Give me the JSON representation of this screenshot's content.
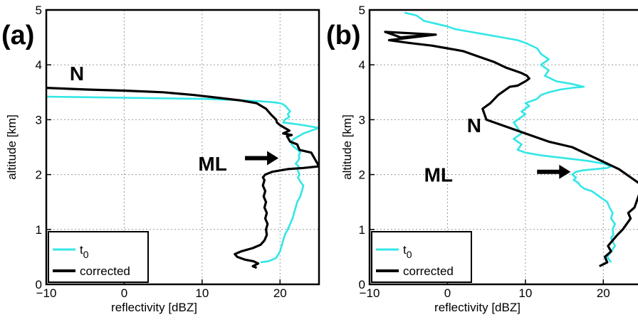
{
  "colors": {
    "t0": "#33e6e6",
    "corrected": "#000000"
  },
  "chart_data": [
    {
      "type": "line",
      "panel_label": "(a)",
      "xlabel": "reflectivity [dBZ]",
      "ylabel": "altitude [km]",
      "xlim": [
        -10,
        25
      ],
      "ylim": [
        0,
        5
      ],
      "xticks": [
        -10,
        0,
        10,
        20
      ],
      "yticks": [
        0,
        1,
        2,
        3,
        4,
        5
      ],
      "grid": true,
      "legend_position": "bottom-left",
      "legend": [
        {
          "series": "t0",
          "label_main": "t",
          "label_sub": "0"
        },
        {
          "series": "corrected",
          "label_main": "corrected",
          "label_sub": ""
        }
      ],
      "annotations": [
        {
          "text": "N",
          "x": -7.0,
          "y": 3.85,
          "arrow": false
        },
        {
          "text": "ML",
          "x": 9.5,
          "y": 2.2,
          "arrow": true,
          "arrow_from": [
            15.5,
            2.3
          ],
          "arrow_to": [
            19.8,
            2.3
          ]
        }
      ],
      "series": [
        {
          "key": "t0",
          "x": [
            17.5,
            18.5,
            19.5,
            20.0,
            20.3,
            20.6,
            21.0,
            21.3,
            21.6,
            21.8,
            22.0,
            22.2,
            22.4,
            22.6,
            22.8,
            23.0,
            22.7,
            22.5,
            22.3,
            22.5,
            22.2,
            22.4,
            22.0,
            22.3,
            22.5,
            22.4,
            22.6,
            22.3,
            21.8,
            21.5,
            21.4,
            21.8,
            22.4,
            23.0,
            24.0,
            25.0,
            23.0,
            21.5,
            20.4,
            20.6,
            21.2,
            21.0,
            21.3,
            21.0,
            20.7,
            20.4,
            20.0,
            19.0,
            17.0,
            14.0,
            10.0,
            5.0,
            0.0,
            -5.0,
            -10.0
          ],
          "y": [
            0.4,
            0.42,
            0.48,
            0.6,
            0.75,
            0.9,
            1.0,
            1.1,
            1.2,
            1.3,
            1.4,
            1.5,
            1.55,
            1.6,
            1.7,
            1.8,
            1.85,
            1.9,
            1.95,
            2.0,
            2.1,
            2.15,
            2.2,
            2.25,
            2.3,
            2.35,
            2.4,
            2.45,
            2.5,
            2.55,
            2.6,
            2.65,
            2.7,
            2.75,
            2.8,
            2.85,
            2.9,
            2.93,
            2.95,
            3.0,
            3.05,
            3.1,
            3.15,
            3.2,
            3.25,
            3.28,
            3.3,
            3.32,
            3.34,
            3.36,
            3.38,
            3.39,
            3.4,
            3.41,
            3.42
          ]
        },
        {
          "key": "corrected",
          "x": [
            17.0,
            16.5,
            17.2,
            16.6,
            15.5,
            14.5,
            14.2,
            15.0,
            16.5,
            17.5,
            18.0,
            18.3,
            18.2,
            18.4,
            18.1,
            18.3,
            18.0,
            18.2,
            17.9,
            18.1,
            17.8,
            18.0,
            17.8,
            18.1,
            19.0,
            21.0,
            23.0,
            25.0,
            24.0,
            22.5,
            22.2,
            21.3,
            20.9,
            21.5,
            20.4,
            21.2,
            20.6,
            20.0,
            19.6,
            19.5,
            18.8,
            18.2,
            17.0,
            15.0,
            12.0,
            9.0,
            5.0,
            0.0,
            -5.0,
            -10.0
          ],
          "y": [
            0.3,
            0.33,
            0.38,
            0.42,
            0.45,
            0.5,
            0.55,
            0.6,
            0.66,
            0.72,
            0.8,
            0.9,
            1.0,
            1.1,
            1.2,
            1.3,
            1.4,
            1.5,
            1.6,
            1.7,
            1.8,
            1.9,
            1.95,
            2.0,
            2.05,
            2.1,
            2.12,
            2.15,
            2.4,
            2.45,
            2.55,
            2.6,
            2.7,
            2.72,
            2.75,
            2.8,
            2.85,
            2.9,
            2.95,
            3.0,
            3.1,
            3.2,
            3.3,
            3.35,
            3.4,
            3.45,
            3.5,
            3.53,
            3.55,
            3.58
          ]
        }
      ]
    },
    {
      "type": "line",
      "panel_label": "(b)",
      "xlabel": "reflectivity [dBZ]",
      "ylabel": "altitude [km]",
      "xlim": [
        -10,
        25
      ],
      "ylim": [
        0,
        5
      ],
      "xticks": [
        -10,
        0,
        10,
        20
      ],
      "yticks": [
        0,
        1,
        2,
        3,
        4,
        5
      ],
      "grid": true,
      "legend_position": "bottom-left",
      "legend": [
        {
          "series": "t0",
          "label_main": "t",
          "label_sub": "0"
        },
        {
          "series": "corrected",
          "label_main": "corrected",
          "label_sub": ""
        }
      ],
      "annotations": [
        {
          "text": "N",
          "x": 2.5,
          "y": 2.9,
          "arrow": false
        },
        {
          "text": "ML",
          "x": -3.0,
          "y": 2.0,
          "arrow": true,
          "arrow_from": [
            11.5,
            2.05
          ],
          "arrow_to": [
            15.8,
            2.05
          ]
        }
      ],
      "series": [
        {
          "key": "t0",
          "x": [
            21.0,
            20.5,
            21.0,
            21.5,
            21.0,
            21.3,
            21.2,
            21.5,
            21.0,
            21.2,
            20.8,
            20.5,
            20.0,
            19.5,
            19.0,
            18.5,
            18.0,
            17.5,
            17.0,
            16.8,
            16.2,
            16.5,
            16.0,
            16.5,
            17.5,
            19.0,
            20.5,
            21.0,
            20.0,
            18.0,
            15.0,
            12.0,
            10.0,
            9.0,
            9.5,
            8.5,
            9.5,
            9.0,
            8.5,
            9.0,
            10.0,
            9.5,
            10.5,
            10.0,
            11.5,
            12.0,
            13.0,
            14.5,
            16.0,
            17.5,
            16.0,
            14.0,
            12.5,
            13.0,
            12.0,
            13.0,
            12.0,
            11.5,
            10.0,
            9.0,
            7.0,
            5.0,
            3.0,
            1.0,
            0.0,
            -1.5,
            -3.0,
            -4.0,
            -5.5
          ],
          "y": [
            0.4,
            0.5,
            0.6,
            0.7,
            0.85,
            0.9,
            1.0,
            1.1,
            1.2,
            1.3,
            1.4,
            1.5,
            1.55,
            1.6,
            1.65,
            1.7,
            1.72,
            1.75,
            1.8,
            1.85,
            1.9,
            1.95,
            2.0,
            2.05,
            2.08,
            2.1,
            2.12,
            2.15,
            2.2,
            2.25,
            2.3,
            2.35,
            2.4,
            2.45,
            2.55,
            2.65,
            2.75,
            2.85,
            2.95,
            3.0,
            3.1,
            3.15,
            3.25,
            3.3,
            3.38,
            3.45,
            3.5,
            3.55,
            3.58,
            3.6,
            3.65,
            3.7,
            3.8,
            3.9,
            4.0,
            4.1,
            4.2,
            4.3,
            4.4,
            4.45,
            4.5,
            4.55,
            4.6,
            4.65,
            4.7,
            4.75,
            4.8,
            4.9,
            4.95
          ]
        },
        {
          "key": "corrected",
          "x": [
            19.5,
            20.5,
            20.2,
            21.0,
            20.6,
            21.2,
            21.8,
            22.5,
            23.0,
            23.5,
            23.2,
            24.0,
            24.5,
            25.0,
            24.0,
            22.0,
            19.0,
            16.0,
            13.0,
            10.0,
            7.0,
            5.0,
            4.5,
            5.5,
            6.5,
            7.0,
            7.5,
            8.0,
            9.0,
            10.0,
            10.5,
            10.2,
            9.5,
            8.5,
            7.5,
            6.0,
            4.0,
            2.0,
            0.0,
            -2.0,
            -5.0,
            -7.5,
            -1.5,
            -8.0,
            -6.0,
            -2.0
          ],
          "y": [
            0.33,
            0.4,
            0.5,
            0.6,
            0.7,
            0.8,
            0.9,
            1.0,
            1.1,
            1.2,
            1.3,
            1.4,
            1.6,
            1.8,
            1.9,
            2.1,
            2.3,
            2.5,
            2.6,
            2.75,
            2.9,
            3.0,
            3.2,
            3.3,
            3.45,
            3.5,
            3.55,
            3.6,
            3.62,
            3.7,
            3.75,
            3.8,
            3.85,
            3.9,
            3.95,
            4.05,
            4.15,
            4.25,
            4.3,
            4.35,
            4.4,
            4.45,
            4.55,
            4.6,
            4.5,
            4.55
          ]
        }
      ]
    }
  ]
}
